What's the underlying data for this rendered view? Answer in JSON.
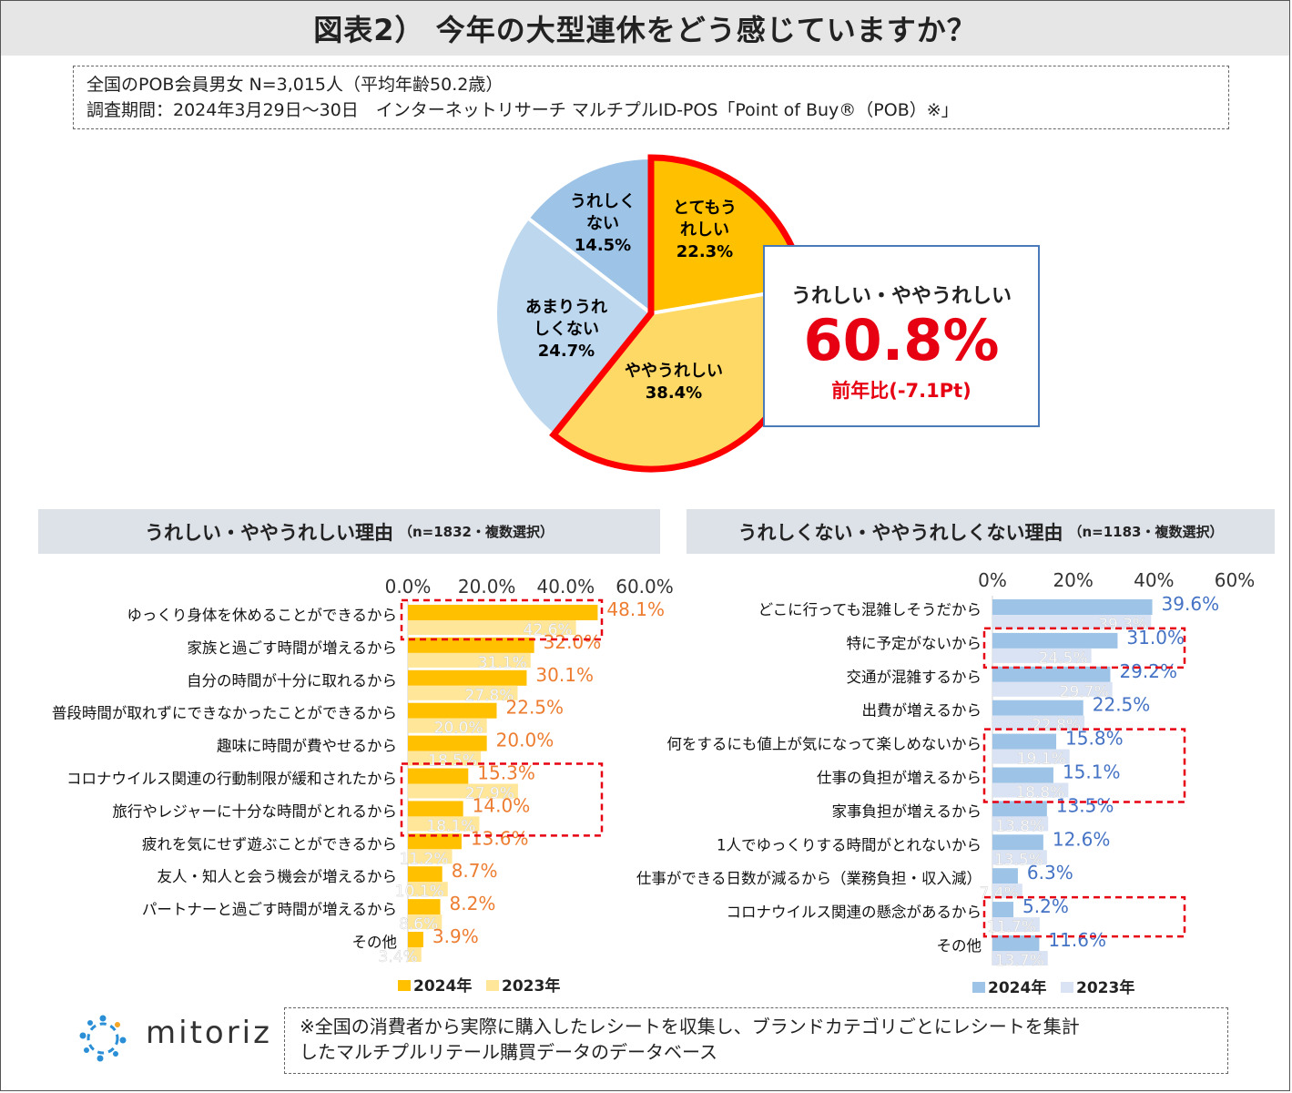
{
  "title": "図表2） 今年の大型連休をどう感じていますか？",
  "survey": {
    "line1": "全国のPOB会員男女 N=3,015人（平均年齢50.2歳）",
    "line2": "調査期間：2024年3月29日～30日　インターネットリサーチ マルチプルID-POS「Point of Buy®（POB）※」"
  },
  "callout": {
    "label": "うれしい・ややうれしい",
    "value": "60.8%",
    "yoy": "前年比(-7.1Pt)"
  },
  "left_panel": {
    "heading": "うれしい・ややうれしい理由",
    "note": "（n=1832・複数選択）"
  },
  "right_panel": {
    "heading": "うれしくない・ややうれしくない理由",
    "note": "（n=1183・複数選択）"
  },
  "footnote": {
    "line1": "※全国の消費者から実際に購入したレシートを収集し、ブランドカテゴリごとにレシートを集計",
    "line2": "したマルチプルリテール購買データのデータベース"
  },
  "logo": {
    "text": "mitoriz"
  },
  "chart_data": [
    {
      "type": "pie",
      "labels": [
        "とてもうれしい",
        "ややうれしい",
        "あまりうれしくない",
        "うれしくない"
      ],
      "display_labels": [
        [
          "とてもう",
          "れしい",
          "22.3%"
        ],
        [
          "ややうれしい",
          "38.4%"
        ],
        [
          "あまりうれ",
          "しくない",
          "24.7%"
        ],
        [
          "うれしく",
          "ない",
          "14.5%"
        ]
      ],
      "values": [
        22.3,
        38.4,
        24.7,
        14.5
      ],
      "colors": [
        "#ffc000",
        "#ffd966",
        "#bdd7ee",
        "#9dc3e6"
      ],
      "highlight": [
        "とてもうれしい",
        "ややうれしい"
      ],
      "highlight_color": "#ff0000"
    },
    {
      "type": "bar",
      "orientation": "horizontal",
      "categories": [
        "ゆっくり身体を休めることができるから",
        "家族と過ごす時間が増えるから",
        "自分の時間が十分に取れるから",
        "普段時間が取れずにできなかったことができるから",
        "趣味に時間が費やせるから",
        "コロナウイルス関連の行動制限が緩和されたから",
        "旅行やレジャーに十分な時間がとれるから",
        "疲れを気にせず遊ぶことができるから",
        "友人・知人と会う機会が増えるから",
        "パートナーと過ごす時間が増えるから",
        "その他"
      ],
      "series": [
        {
          "name": "2024年",
          "values": [
            48.1,
            32.0,
            30.1,
            22.5,
            20.0,
            15.3,
            14.0,
            13.6,
            8.7,
            8.2,
            3.9
          ],
          "color": "#ffc000",
          "label_color": "#ed7d31"
        },
        {
          "name": "2023年",
          "values": [
            42.6,
            31.1,
            27.8,
            20.0,
            18.5,
            27.9,
            18.1,
            11.2,
            10.1,
            8.6,
            3.4
          ],
          "color": "#ffe699",
          "label_color": "#ffffff"
        }
      ],
      "value_labels": {
        "2024年": [
          "48.1%",
          "32.0%",
          "30.1%",
          "22.5%",
          "20.0%",
          "15.3%",
          "14.0%",
          "13.6%",
          "8.7%",
          "8.2%",
          "3.9%"
        ],
        "2023年": [
          "42.6%",
          "31.1%",
          "27.8%",
          "20.0%",
          "18.5%",
          "27.9%",
          "18.1%",
          "11.2%",
          "10.1%",
          "8.6%",
          "3.4%"
        ]
      },
      "xlim": [
        0,
        60
      ],
      "xticks": [
        "0.0%",
        "20.0%",
        "40.0%",
        "60.0%"
      ],
      "highlight_boxes": [
        [
          0
        ],
        [
          5,
          6
        ]
      ],
      "legend": [
        "2024年",
        "2023年"
      ],
      "legend_position": "bottom"
    },
    {
      "type": "bar",
      "orientation": "horizontal",
      "categories": [
        "どこに行っても混雑しそうだから",
        "特に予定がないから",
        "交通が混雑するから",
        "出費が増えるから",
        "何をするにも値上が気になって楽しめないから",
        "仕事の負担が増えるから",
        "家事負担が増えるから",
        "1人でゆっくりする時間がとれないから",
        "仕事ができる日数が減るから（業務負担・収入減）",
        "コロナウイルス関連の懸念があるから",
        "その他"
      ],
      "series": [
        {
          "name": "2024年",
          "values": [
            39.6,
            31.0,
            29.2,
            22.5,
            15.8,
            15.1,
            13.5,
            12.6,
            6.3,
            5.2,
            11.6
          ],
          "color": "#9dc3e6",
          "label_color": "#4472c4"
        },
        {
          "name": "2023年",
          "values": [
            39.3,
            24.5,
            29.7,
            22.8,
            19.1,
            18.8,
            13.8,
            13.5,
            7.4,
            11.7,
            13.7
          ],
          "color": "#dae3f3",
          "label_color": "#ffffff"
        }
      ],
      "value_labels": {
        "2024年": [
          "39.6%",
          "31.0%",
          "29.2%",
          "22.5%",
          "15.8%",
          "15.1%",
          "13.5%",
          "12.6%",
          "6.3%",
          "5.2%",
          "11.6%"
        ],
        "2023年": [
          "39.3%",
          "24.5%",
          "29.7%",
          "22.8%",
          "19.1%",
          "18.8%",
          "13.8%",
          "13.5%",
          "7.4%",
          "11.7%",
          "13.7%"
        ]
      },
      "xlim": [
        0,
        60
      ],
      "xticks": [
        "0%",
        "20%",
        "40%",
        "60%"
      ],
      "highlight_boxes": [
        [
          1
        ],
        [
          4,
          5
        ],
        [
          9
        ]
      ],
      "legend": [
        "2024年",
        "2023年"
      ],
      "legend_position": "bottom"
    }
  ]
}
